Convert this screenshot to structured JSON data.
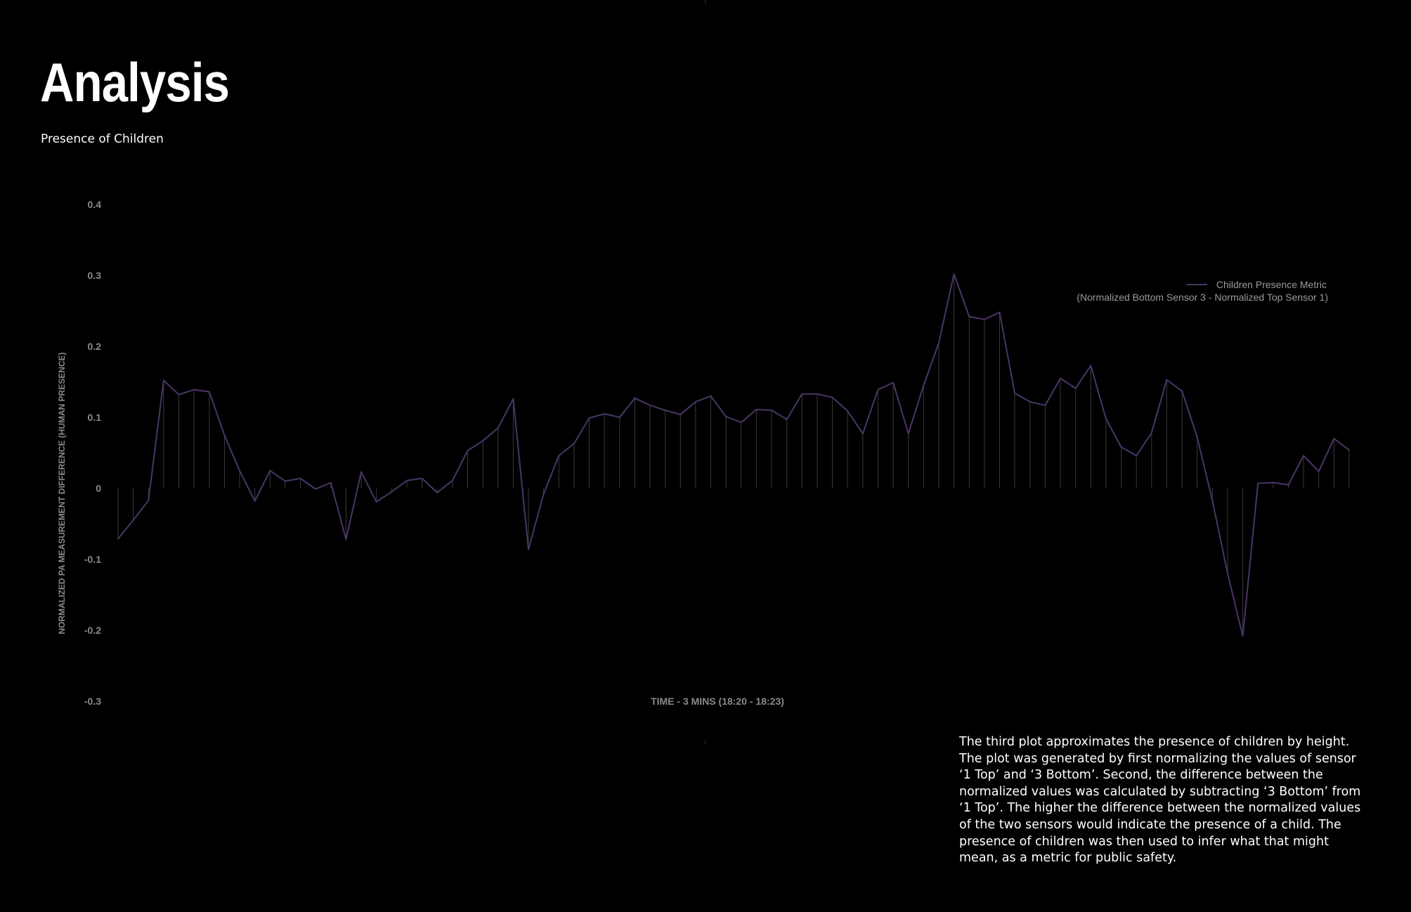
{
  "header": {
    "title": "Analysis",
    "subtitle": "Presence of Children"
  },
  "description": "The third plot approximates the presence of children by height. The plot was generated by first normalizing the values of sensor ‘1 Top’ and ‘3 Bottom’. Second, the difference between the normalized values was calculated by subtracting ‘3 Bottom’ from ‘1 Top’. The higher the difference between the normalized values of the two sensors would indicate the presence of a child. The presence of children was then used to infer what that might mean, as a metric for public safety.",
  "colors": {
    "background": "#000000",
    "line": "#4a3566",
    "drop_line": "#3a3a3a",
    "axis_text": "#8a8a8a",
    "legend_text": "#9a9a9a"
  },
  "chart_data": {
    "type": "line",
    "title": "",
    "xlabel": "TIME - 3 MINS (18:20 - 18:23)",
    "ylabel": "NORMALIZED PA MEASUREMENT DIFFERENCE (HUMAN PRESENCE)",
    "ylim": [
      -0.3,
      0.4
    ],
    "yticks": [
      "0.4",
      "0.3",
      "0.2",
      "0.1",
      "0",
      "-0.1",
      "-0.2",
      "-0.3"
    ],
    "grid": false,
    "legend_position": "top-right",
    "legend": {
      "name": "Children Presence Metric",
      "subtitle": "(Normalized Bottom Sensor 3 - Normalized Top Sensor 1)"
    },
    "series": [
      {
        "name": "Children Presence Metric",
        "values": [
          -0.071,
          -0.045,
          -0.017,
          0.152,
          0.132,
          0.139,
          0.136,
          0.075,
          0.025,
          -0.018,
          0.025,
          0.01,
          0.014,
          -0.001,
          0.008,
          -0.072,
          0.023,
          -0.019,
          -0.005,
          0.011,
          0.014,
          -0.006,
          0.011,
          0.053,
          0.067,
          0.085,
          0.126,
          -0.086,
          -0.008,
          0.046,
          0.063,
          0.099,
          0.105,
          0.1,
          0.127,
          0.117,
          0.11,
          0.104,
          0.122,
          0.13,
          0.101,
          0.093,
          0.111,
          0.11,
          0.097,
          0.133,
          0.133,
          0.128,
          0.109,
          0.077,
          0.139,
          0.149,
          0.077,
          0.145,
          0.205,
          0.302,
          0.242,
          0.238,
          0.248,
          0.134,
          0.122,
          0.117,
          0.155,
          0.141,
          0.173,
          0.098,
          0.058,
          0.046,
          0.078,
          0.153,
          0.137,
          0.072,
          -0.017,
          -0.12,
          -0.208,
          0.007,
          0.008,
          0.005,
          0.046,
          0.024,
          0.07,
          0.054
        ]
      }
    ]
  }
}
